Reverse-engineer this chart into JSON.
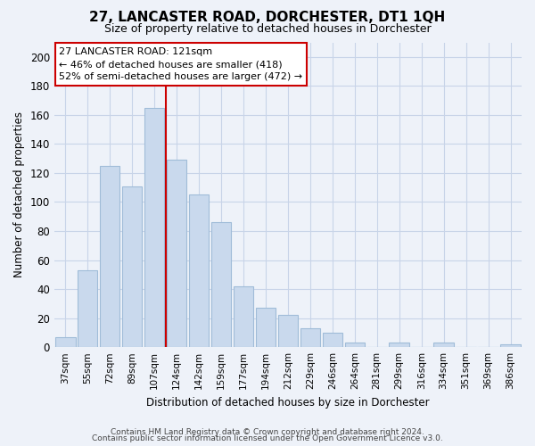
{
  "title": "27, LANCASTER ROAD, DORCHESTER, DT1 1QH",
  "subtitle": "Size of property relative to detached houses in Dorchester",
  "xlabel": "Distribution of detached houses by size in Dorchester",
  "ylabel": "Number of detached properties",
  "bar_labels": [
    "37sqm",
    "55sqm",
    "72sqm",
    "89sqm",
    "107sqm",
    "124sqm",
    "142sqm",
    "159sqm",
    "177sqm",
    "194sqm",
    "212sqm",
    "229sqm",
    "246sqm",
    "264sqm",
    "281sqm",
    "299sqm",
    "316sqm",
    "334sqm",
    "351sqm",
    "369sqm",
    "386sqm"
  ],
  "bar_values": [
    7,
    53,
    125,
    111,
    165,
    129,
    105,
    86,
    42,
    27,
    22,
    13,
    10,
    3,
    0,
    3,
    0,
    3,
    0,
    0,
    2
  ],
  "bar_color": "#c9d9ed",
  "bar_edge_color": "#a0bcd8",
  "vline_position": 4.5,
  "ylim": [
    0,
    210
  ],
  "yticks": [
    0,
    20,
    40,
    60,
    80,
    100,
    120,
    140,
    160,
    180,
    200
  ],
  "annotation_title": "27 LANCASTER ROAD: 121sqm",
  "annotation_line1": "← 46% of detached houses are smaller (418)",
  "annotation_line2": "52% of semi-detached houses are larger (472) →",
  "annotation_box_color": "#ffffff",
  "annotation_box_edge": "#cc0000",
  "vline_color": "#cc0000",
  "footer_line1": "Contains HM Land Registry data © Crown copyright and database right 2024.",
  "footer_line2": "Contains public sector information licensed under the Open Government Licence v3.0.",
  "bg_color": "#eef2f9",
  "plot_bg_color": "#eef2f9",
  "grid_color": "#c8d4e8"
}
